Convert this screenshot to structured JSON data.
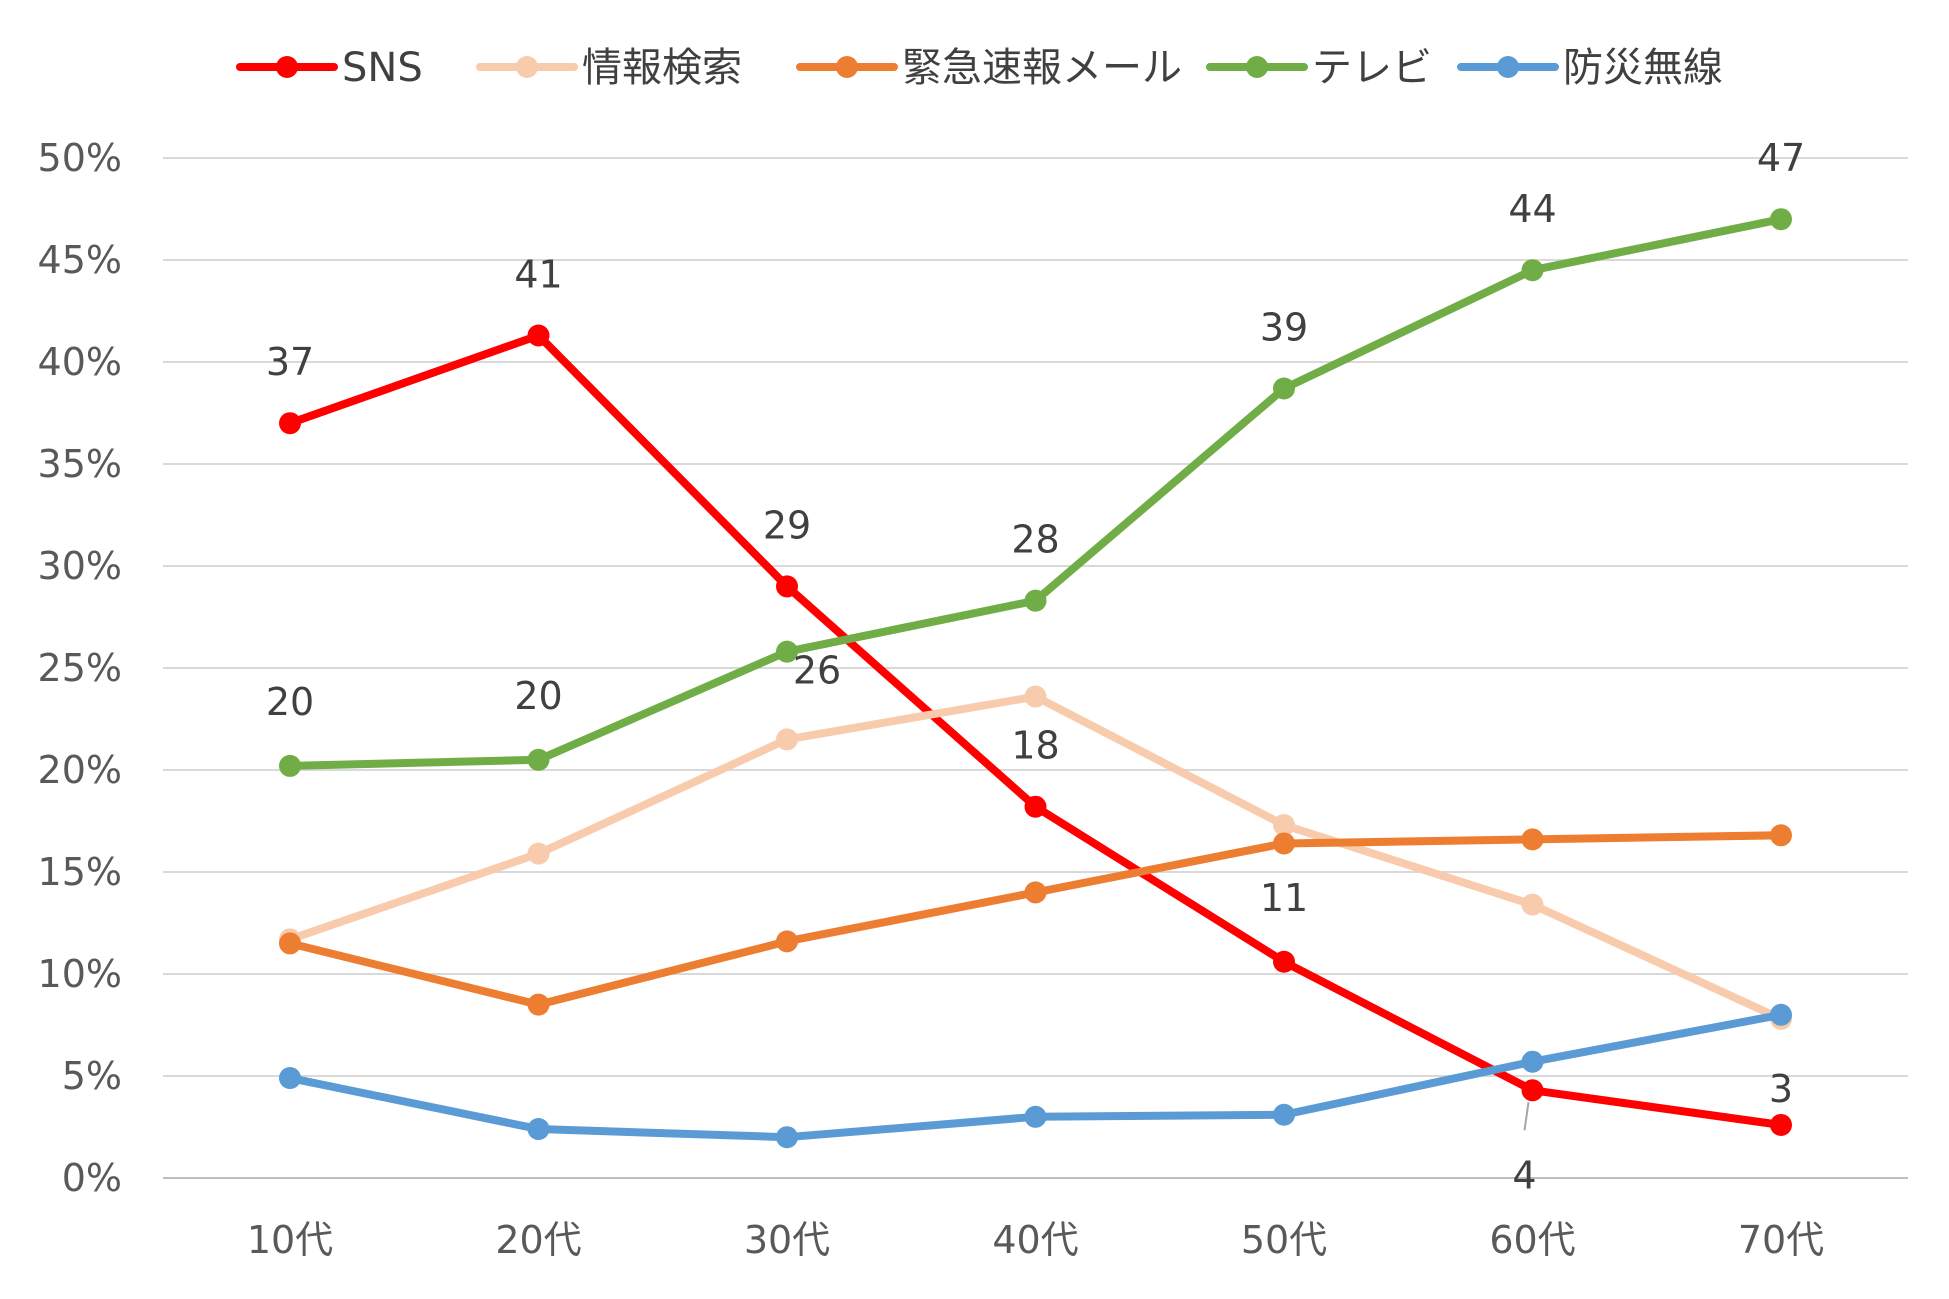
{
  "chart_data": {
    "type": "line",
    "title": "",
    "xlabel": "",
    "ylabel": "",
    "categories": [
      "10代",
      "20代",
      "30代",
      "40代",
      "50代",
      "60代",
      "70代"
    ],
    "y_ticks": [
      "0%",
      "5%",
      "10%",
      "15%",
      "20%",
      "25%",
      "30%",
      "35%",
      "40%",
      "45%",
      "50%"
    ],
    "ylim": [
      0,
      50
    ],
    "grid": true,
    "legend_position": "top",
    "series": [
      {
        "name": "SNS",
        "color": "#ff0000",
        "values": [
          37.0,
          41.3,
          29.0,
          18.2,
          10.6,
          4.3,
          2.6
        ],
        "labels": [
          "37",
          "41",
          "29",
          "18",
          "11",
          "4",
          "3"
        ]
      },
      {
        "name": "情報検索",
        "color": "#f8cbad",
        "values": [
          11.7,
          15.9,
          21.5,
          23.6,
          17.3,
          13.4,
          7.8
        ],
        "labels": [
          "",
          "",
          "",
          "",
          "",
          "",
          ""
        ]
      },
      {
        "name": "緊急速報メール",
        "color": "#ed7d31",
        "values": [
          11.5,
          8.5,
          11.6,
          14.0,
          16.4,
          16.6,
          16.8
        ],
        "labels": [
          "",
          "",
          "",
          "",
          "",
          "",
          ""
        ]
      },
      {
        "name": "テレビ",
        "color": "#70ad47",
        "values": [
          20.2,
          20.5,
          25.8,
          28.3,
          38.7,
          44.5,
          47.0
        ],
        "labels": [
          "20",
          "20",
          "26",
          "28",
          "39",
          "44",
          "47"
        ]
      },
      {
        "name": "防災無線",
        "color": "#5b9bd5",
        "values": [
          4.9,
          2.4,
          2.0,
          3.0,
          3.1,
          5.7,
          8.0
        ],
        "labels": [
          "",
          "",
          "",
          "",
          "",
          "",
          ""
        ]
      }
    ]
  }
}
